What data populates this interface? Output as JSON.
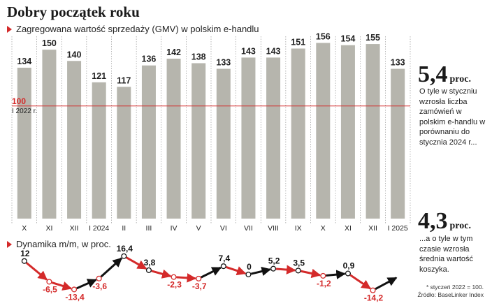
{
  "title": "Dobry początek roku",
  "subtitle_gmv": "Zagregowana wartość sprzedaży (GMV) w polskim e-handlu",
  "subtitle_mm": "Dynamika m/m, w proc.",
  "baseline": {
    "value": 100,
    "label": "100",
    "sublabel": "I 2022 r."
  },
  "chart_data": [
    {
      "type": "bar",
      "categories": [
        "X",
        "XI",
        "XII",
        "I 2024",
        "II",
        "III",
        "IV",
        "V",
        "VI",
        "VII",
        "VIII",
        "IX",
        "X",
        "XI",
        "XII",
        "I 2025"
      ],
      "values": [
        134,
        150,
        140,
        121,
        117,
        136,
        142,
        138,
        133,
        143,
        143,
        151,
        156,
        154,
        155,
        133
      ],
      "ylim": [
        0,
        160
      ],
      "colors": {
        "bar": "#b6b5ad",
        "baseline": "#d42a2a",
        "grid": "#888888"
      }
    },
    {
      "type": "line",
      "categories": [
        "X",
        "XI",
        "XII",
        "I 2024",
        "II",
        "III",
        "IV",
        "V",
        "VI",
        "VII",
        "VIII",
        "IX",
        "X",
        "XI",
        "XII",
        "I 2025"
      ],
      "values": [
        12,
        -6.5,
        -13.4,
        -3.6,
        16.4,
        3.8,
        -2.3,
        -3.7,
        7.4,
        0,
        5.2,
        3.5,
        -1.2,
        0.9,
        -14.2
      ],
      "labels": [
        "12",
        "-6,5",
        "-13,4",
        "-3,6",
        "16,4",
        "3,8",
        "-2,3",
        "-3,7",
        "7,4",
        "0",
        "5,2",
        "3,5",
        "-1,2",
        "0,9",
        "-14,2"
      ],
      "colors": {
        "up": "#111111",
        "down": "#d42a2a"
      }
    }
  ],
  "stats": [
    {
      "number": "5,4",
      "unit": "proc.",
      "text": "O tyle w styczniu wzrosła liczba zamówień w polskim e-handlu w porównaniu do stycznia 2024 r..."
    },
    {
      "number": "4,3",
      "unit": "proc.",
      "text": "...a o tyle w tym czasie wzrosła średnia wartość koszyka."
    }
  ],
  "footnote": "* styczeń 2022 = 100.",
  "source": "Źródło: BaseLinker Index"
}
